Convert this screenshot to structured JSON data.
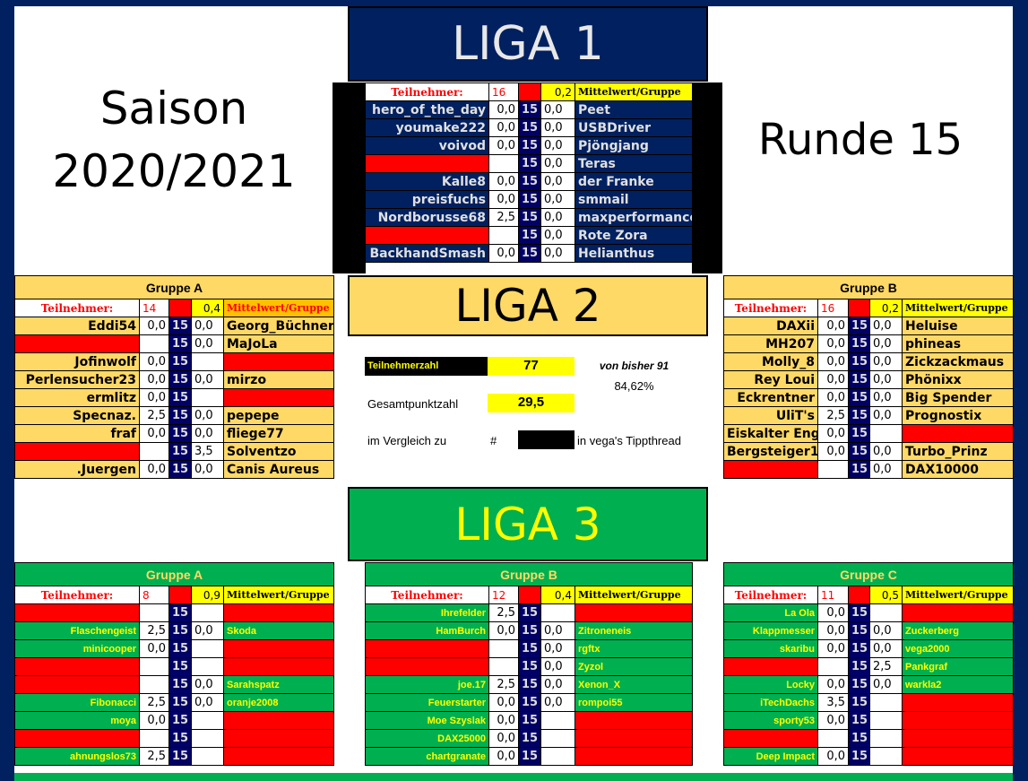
{
  "colors": {
    "navy": "#002060",
    "gold": "#FFD966",
    "green": "#00B050",
    "red": "#FF0000",
    "yellow": "#FFFF00",
    "round_cell": "#000066"
  },
  "saison": {
    "line1": "Saison",
    "line2": "2020/2021"
  },
  "runde": "Runde 15",
  "liga1": {
    "title": "LIGA 1",
    "group": {
      "title": "",
      "tn_label": "Teilnehmer:",
      "count": "16",
      "mean": "0,2",
      "mw_label": "Mittelwert/Gruppe",
      "round": "15",
      "rows": [
        [
          "hero_of_the_day",
          "0,0",
          "0,0",
          "Peet"
        ],
        [
          "youmake222",
          "0,0",
          "0,0",
          "USBDriver"
        ],
        [
          "voivod",
          "0,0",
          "0,0",
          "Pjöngjang"
        ],
        [
          null,
          "",
          "0,0",
          "Teras"
        ],
        [
          "Kalle8",
          "0,0",
          "0,0",
          "der Franke"
        ],
        [
          "preisfuchs",
          "0,0",
          "0,0",
          "smmail"
        ],
        [
          "Nordborusse68",
          "2,5",
          "0,0",
          "maxperformance"
        ],
        [
          null,
          "",
          "0,0",
          "Rote Zora"
        ],
        [
          "BackhandSmash",
          "0,0",
          "0,0",
          "Helianthus"
        ]
      ]
    }
  },
  "liga2": {
    "title": "LIGA 2",
    "stats": {
      "teilnehmerzahl_label": "Teilnehmerzahl",
      "teilnehmerzahl": "77",
      "von_bisher": "von bisher 91",
      "percent": "84,62%",
      "gesamt_label": "Gesamtpunktzahl",
      "gesamt": "29,5",
      "vergleich_label": "im Vergleich zu",
      "hash": "#",
      "vergleich_suffix": "in vega's Tippthread"
    },
    "groups": [
      {
        "title": "Gruppe A",
        "tn_label": "Teilnehmer:",
        "count": "14",
        "mean": "0,4",
        "mw_label": "Mittelwert/Gruppe",
        "round": "15",
        "rows": [
          [
            "Eddi54",
            "0,0",
            "0,0",
            "Georg_Büchner"
          ],
          [
            null,
            "",
            "0,0",
            "MaJoLa"
          ],
          [
            "Jofinwolf",
            "0,0",
            "",
            null
          ],
          [
            "Perlensucher23",
            "0,0",
            "0,0",
            "mirzo"
          ],
          [
            "ermlitz",
            "0,0",
            "",
            null
          ],
          [
            "Specnaz.",
            "2,5",
            "0,0",
            "pepepe"
          ],
          [
            "fraf",
            "0,0",
            "0,0",
            "fliege77"
          ],
          [
            null,
            "",
            "3,5",
            "Solventzo"
          ],
          [
            ".Juergen",
            "0,0",
            "0,0",
            "Canis Aureus"
          ]
        ]
      },
      {
        "title": "Gruppe B",
        "tn_label": "Teilnehmer:",
        "count": "16",
        "mean": "0,2",
        "mw_label": "Mittelwert/Gruppe",
        "round": "15",
        "rows": [
          [
            "DAXii",
            "0,0",
            "0,0",
            "Heluise"
          ],
          [
            "MH207",
            "0,0",
            "0,0",
            "phineas"
          ],
          [
            "Molly_8",
            "0,0",
            "0,0",
            "Zickzackmaus"
          ],
          [
            "Rey Loui",
            "0,0",
            "0,0",
            "Phönixx"
          ],
          [
            "Eckrentner",
            "0,0",
            "0,0",
            "Big Spender"
          ],
          [
            "UliT's",
            "2,5",
            "0,0",
            "Prognostix"
          ],
          [
            "Eiskalter Engel",
            "0,0",
            "",
            null
          ],
          [
            "Bergsteiger1",
            "0,0",
            "0,0",
            "Turbo_Prinz"
          ],
          [
            null,
            "",
            "0,0",
            "DAX10000"
          ]
        ]
      }
    ]
  },
  "liga3": {
    "title": "LIGA 3",
    "groups": [
      {
        "title": "Gruppe A",
        "tn_label": "Teilnehmer:",
        "count": "8",
        "mean": "0,9",
        "mw_label": "Mittelwert/Gruppe",
        "round": "15",
        "rows": [
          [
            null,
            "",
            "",
            null
          ],
          [
            "Flaschengeist",
            "2,5",
            "0,0",
            "Skoda"
          ],
          [
            "minicooper",
            "0,0",
            "",
            null
          ],
          [
            null,
            "",
            "",
            null
          ],
          [
            null,
            "",
            "0,0",
            "Sarahspatz"
          ],
          [
            "Fibonacci",
            "2,5",
            "0,0",
            "oranje2008"
          ],
          [
            "moya",
            "0,0",
            "",
            null
          ],
          [
            null,
            "",
            "",
            null
          ],
          [
            "ahnungslos73",
            "2,5",
            "",
            null
          ]
        ]
      },
      {
        "title": "Gruppe B",
        "tn_label": "Teilnehmer:",
        "count": "12",
        "mean": "0,4",
        "mw_label": "Mittelwert/Gruppe",
        "round": "15",
        "rows": [
          [
            "Ihrefelder",
            "2,5",
            "",
            null
          ],
          [
            "HamBurch",
            "0,0",
            "0,0",
            "Zitroneneis"
          ],
          [
            null,
            "",
            "0,0",
            "rgftx"
          ],
          [
            null,
            "",
            "0,0",
            "Zyzol"
          ],
          [
            "joe.17",
            "2,5",
            "0,0",
            "Xenon_X"
          ],
          [
            "Feuerstarter",
            "0,0",
            "0,0",
            "rompoi55"
          ],
          [
            "Moe Szyslak",
            "0,0",
            "",
            null
          ],
          [
            "DAX25000",
            "0,0",
            "",
            null
          ],
          [
            "chartgranate",
            "0,0",
            "",
            null
          ]
        ]
      },
      {
        "title": "Gruppe C",
        "tn_label": "Teilnehmer:",
        "count": "11",
        "mean": "0,5",
        "mw_label": "Mittelwert/Gruppe",
        "round": "15",
        "rows": [
          [
            "La Ola",
            "0,0",
            "",
            null
          ],
          [
            "Klappmesser",
            "0,0",
            "0,0",
            "Zuckerberg"
          ],
          [
            "skaribu",
            "0,0",
            "0,0",
            "vega2000"
          ],
          [
            null,
            "",
            "2,5",
            "Pankgraf"
          ],
          [
            "Locky",
            "0,0",
            "0,0",
            "warkla2"
          ],
          [
            "iTechDachs",
            "3,5",
            "",
            null
          ],
          [
            "sporty53",
            "0,0",
            "",
            null
          ],
          [
            null,
            "",
            "",
            null
          ],
          [
            "Deep Impact",
            "0,0",
            "",
            null
          ]
        ]
      }
    ]
  }
}
